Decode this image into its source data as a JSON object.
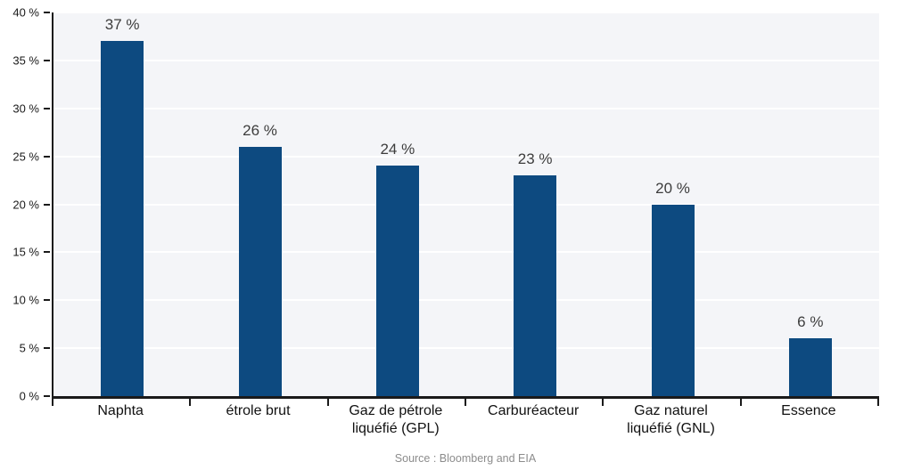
{
  "chart_data": {
    "type": "bar",
    "categories": [
      "Naphta",
      "étrole brut",
      "Gaz de pétrole\nliquéfié (GPL)",
      "Carburéacteur",
      "Gaz naturel\nliquéfié (GNL)",
      "Essence"
    ],
    "values": [
      37,
      26,
      24,
      23,
      20,
      6
    ],
    "value_labels": [
      "37 %",
      "26 %",
      "24 %",
      "23 %",
      "20 %",
      "6 %"
    ],
    "title": "",
    "xlabel": "",
    "ylabel": "",
    "ylim": [
      0,
      40
    ],
    "ytick_step": 5,
    "ytick_labels": [
      "0 %",
      "5 %",
      "10 %",
      "15 %",
      "20 %",
      "25 %",
      "30 %",
      "35 %",
      "40 %"
    ],
    "grid": true,
    "legend": "none",
    "source": "Source : Bloomberg and EIA"
  },
  "colors": {
    "bar": "#0d4a80",
    "plot_background": "#f4f5f8",
    "gridline": "#ffffff",
    "axis": "#1a1a1a",
    "value_label": "#3d3d3d",
    "category_label": "#111111",
    "source_text": "#8c8c8c"
  }
}
